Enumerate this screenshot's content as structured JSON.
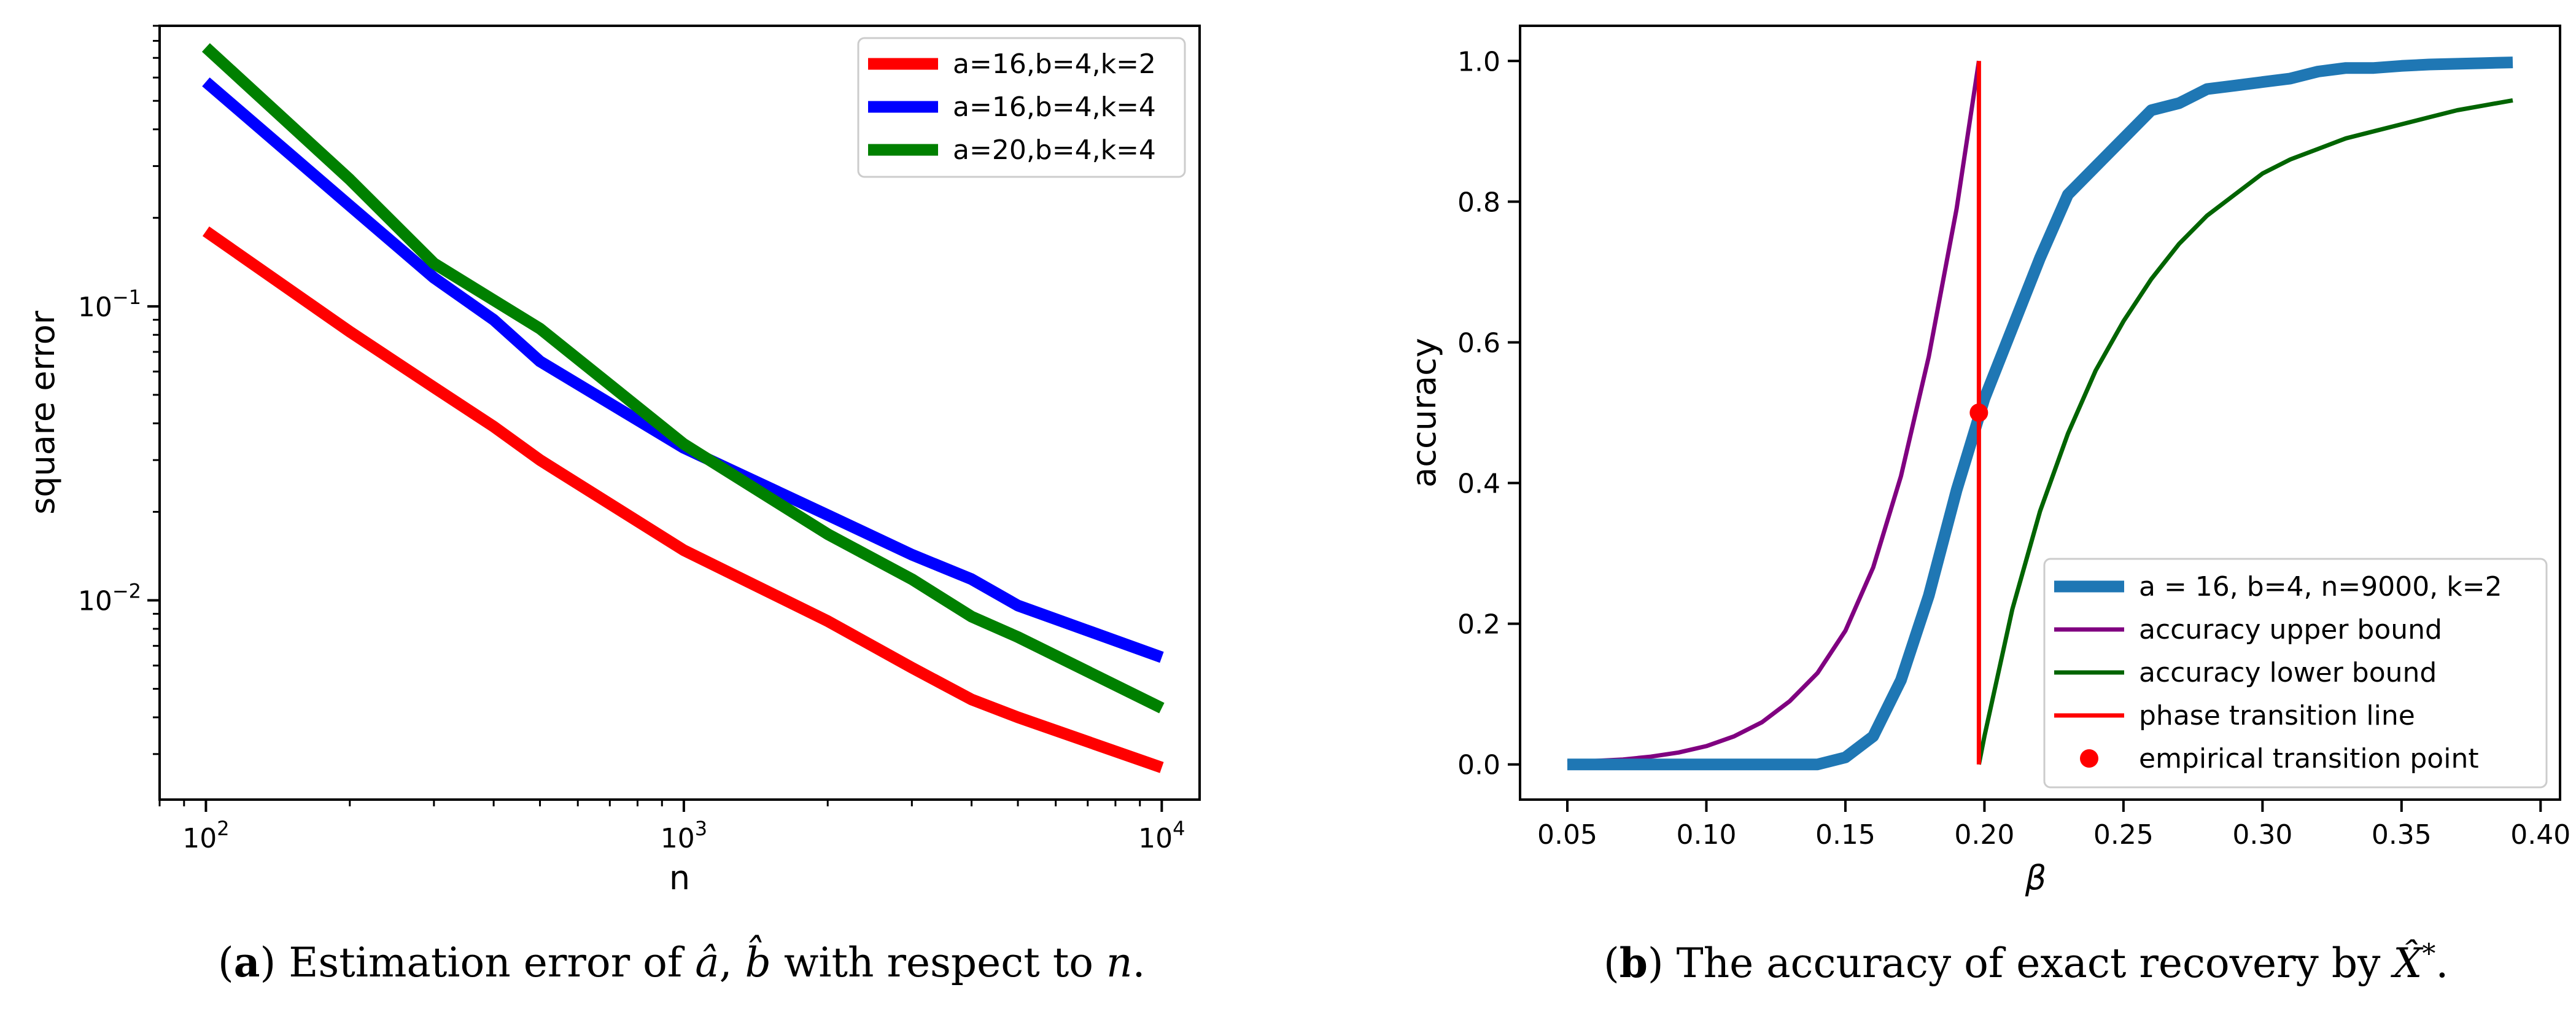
{
  "figures": [
    {
      "caption": {
        "label": "a",
        "text": "Estimation error of â, b̂ with respect to n.",
        "text_pre": ") Estimation error of ",
        "sym1": "â",
        "sep": ", ",
        "sym2": "b̂",
        "text_mid": " with respect to ",
        "sym3": "n",
        "text_post": "."
      }
    },
    {
      "caption": {
        "label": "b",
        "text": "The accuracy of exact recovery by X̂*.",
        "text_pre": ") The accuracy of exact recovery by ",
        "sym1": "X̂",
        "sup": "*",
        "text_post": "."
      }
    }
  ],
  "chart_data": [
    {
      "type": "line",
      "xscale": "log",
      "yscale": "log",
      "xlabel": "n",
      "ylabel": "square error",
      "xlim": [
        80,
        12000
      ],
      "ylim": [
        0.0021,
        0.9
      ],
      "x_ticks": [
        {
          "value": 100,
          "label": "10",
          "exp": "2"
        },
        {
          "value": 1000,
          "label": "10",
          "exp": "3"
        },
        {
          "value": 10000,
          "label": "10",
          "exp": "4"
        }
      ],
      "y_ticks": [
        {
          "value": 0.1,
          "label": "10",
          "exp": "−1"
        },
        {
          "value": 0.01,
          "label": "10",
          "exp": "−2"
        }
      ],
      "grid": false,
      "legend_position": "top-right",
      "series": [
        {
          "name": "a=16,b=4,k=2",
          "color": "#ff0000",
          "x": [
            100,
            200,
            300,
            400,
            500,
            1000,
            2000,
            3000,
            4000,
            5000,
            10000
          ],
          "y": [
            0.18,
            0.082,
            0.053,
            0.039,
            0.03,
            0.0148,
            0.0085,
            0.0059,
            0.0046,
            0.004,
            0.0027
          ]
        },
        {
          "name": "a=16,b=4,k=4",
          "color": "#0000ff",
          "x": [
            100,
            200,
            300,
            400,
            500,
            1000,
            2000,
            3000,
            4000,
            5000,
            10000
          ],
          "y": [
            0.58,
            0.22,
            0.125,
            0.09,
            0.065,
            0.033,
            0.0195,
            0.0143,
            0.0118,
            0.0096,
            0.0064
          ]
        },
        {
          "name": "a=20,b=4,k=4",
          "color": "#008000",
          "x": [
            100,
            200,
            300,
            400,
            500,
            1000,
            2000,
            3000,
            4000,
            5000,
            10000
          ],
          "y": [
            0.76,
            0.27,
            0.14,
            0.105,
            0.084,
            0.034,
            0.0168,
            0.0118,
            0.0088,
            0.0075,
            0.0043
          ]
        }
      ]
    },
    {
      "type": "line",
      "xlabel": "β",
      "ylabel": "accuracy",
      "xlim": [
        0.033,
        0.407
      ],
      "ylim": [
        -0.05,
        1.05
      ],
      "x_ticks": [
        "0.05",
        "0.10",
        "0.15",
        "0.20",
        "0.25",
        "0.30",
        "0.35",
        "0.40"
      ],
      "y_ticks": [
        "0.0",
        "0.2",
        "0.4",
        "0.6",
        "0.8",
        "1.0"
      ],
      "grid": false,
      "legend_position": "bottom-right",
      "series": [
        {
          "name": "a = 16, b=4, n=9000, k=2",
          "color": "#1f77b4",
          "style": "thick-line",
          "x": [
            0.05,
            0.06,
            0.07,
            0.08,
            0.09,
            0.1,
            0.11,
            0.12,
            0.13,
            0.14,
            0.15,
            0.16,
            0.17,
            0.18,
            0.19,
            0.2,
            0.21,
            0.22,
            0.23,
            0.24,
            0.25,
            0.26,
            0.27,
            0.28,
            0.29,
            0.3,
            0.31,
            0.32,
            0.33,
            0.34,
            0.35,
            0.36,
            0.37,
            0.38,
            0.39
          ],
          "y": [
            0,
            0,
            0,
            0,
            0,
            0,
            0,
            0,
            0,
            0,
            0.01,
            0.04,
            0.12,
            0.24,
            0.39,
            0.52,
            0.62,
            0.72,
            0.81,
            0.85,
            0.89,
            0.93,
            0.94,
            0.96,
            0.965,
            0.97,
            0.975,
            0.985,
            0.99,
            0.99,
            0.993,
            0.995,
            0.996,
            0.997,
            0.998
          ]
        },
        {
          "name": "accuracy upper bound",
          "color": "#800080",
          "style": "line",
          "x": [
            0.05,
            0.06,
            0.07,
            0.08,
            0.09,
            0.1,
            0.11,
            0.12,
            0.13,
            0.14,
            0.15,
            0.16,
            0.17,
            0.18,
            0.19,
            0.198
          ],
          "y": [
            0.003,
            0.005,
            0.007,
            0.011,
            0.017,
            0.026,
            0.04,
            0.06,
            0.09,
            0.13,
            0.19,
            0.28,
            0.41,
            0.58,
            0.79,
            1.0
          ]
        },
        {
          "name": "accuracy lower bound",
          "color": "#006400",
          "style": "line",
          "x": [
            0.198,
            0.2,
            0.21,
            0.22,
            0.23,
            0.24,
            0.25,
            0.26,
            0.27,
            0.28,
            0.29,
            0.3,
            0.31,
            0.32,
            0.33,
            0.34,
            0.35,
            0.36,
            0.37,
            0.38,
            0.39
          ],
          "y": [
            0.0,
            0.04,
            0.22,
            0.36,
            0.47,
            0.56,
            0.63,
            0.69,
            0.74,
            0.78,
            0.81,
            0.84,
            0.86,
            0.875,
            0.89,
            0.9,
            0.91,
            0.92,
            0.93,
            0.937,
            0.944
          ]
        },
        {
          "name": "phase transition line",
          "color": "#ff0000",
          "style": "vline",
          "x": [
            0.198,
            0.198
          ],
          "y": [
            0.0,
            1.0
          ]
        },
        {
          "name": "empirical transition point",
          "color": "#ff0000",
          "style": "point",
          "x": [
            0.198
          ],
          "y": [
            0.5
          ]
        }
      ]
    }
  ]
}
